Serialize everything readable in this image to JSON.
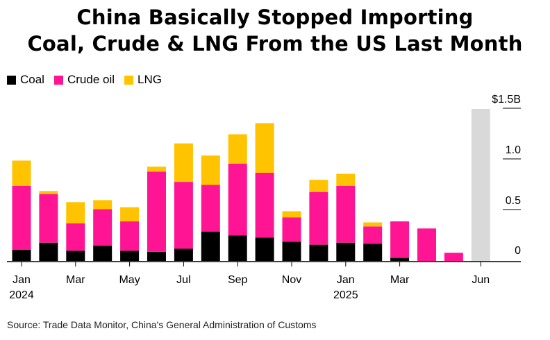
{
  "title_lines": [
    "China Basically Stopped Importing",
    "Coal, Crude & LNG From the US Last Month"
  ],
  "source": "Source: Trade Data Monitor, China's General Administration of Customs",
  "colors": {
    "coal": "#000000",
    "crude": "#ff1493",
    "lng": "#ffc300",
    "projection": "#d9d9d9"
  },
  "chart_data": {
    "type": "bar",
    "stacked": true,
    "unit": "$B",
    "categories": [
      "Jan 2024",
      "Feb 2024",
      "Mar 2024",
      "Apr 2024",
      "May 2024",
      "Jun 2024",
      "Jul 2024",
      "Aug 2024",
      "Sep 2024",
      "Oct 2024",
      "Nov 2024",
      "Dec 2024",
      "Jan 2025",
      "Feb 2025",
      "Mar 2025",
      "Apr 2025",
      "May 2025",
      "Jun 2025"
    ],
    "series": [
      {
        "name": "Coal",
        "color": "#000000",
        "values": [
          0.11,
          0.18,
          0.1,
          0.15,
          0.1,
          0.09,
          0.12,
          0.29,
          0.25,
          0.23,
          0.19,
          0.16,
          0.18,
          0.17,
          0.03,
          0.0,
          0.0,
          0.0
        ]
      },
      {
        "name": "Crude oil",
        "color": "#ff1493",
        "values": [
          0.63,
          0.48,
          0.27,
          0.36,
          0.29,
          0.79,
          0.66,
          0.46,
          0.71,
          0.64,
          0.24,
          0.52,
          0.56,
          0.17,
          0.36,
          0.32,
          0.08,
          0.0
        ]
      },
      {
        "name": "LNG",
        "color": "#ffc300",
        "values": [
          0.25,
          0.03,
          0.21,
          0.09,
          0.14,
          0.05,
          0.38,
          0.29,
          0.29,
          0.49,
          0.06,
          0.12,
          0.12,
          0.04,
          0.0,
          0.0,
          0.0,
          0.0
        ]
      }
    ],
    "highlight": {
      "category": "Jun 2025",
      "value": 1.5,
      "color": "#d9d9d9"
    },
    "x_tick_labels": [
      {
        "category": "Jan 2024",
        "lines": [
          "Jan",
          "2024"
        ]
      },
      {
        "category": "Mar 2024",
        "lines": [
          "Mar"
        ]
      },
      {
        "category": "May 2024",
        "lines": [
          "May"
        ]
      },
      {
        "category": "Jul 2024",
        "lines": [
          "Jul"
        ]
      },
      {
        "category": "Sep 2024",
        "lines": [
          "Sep"
        ]
      },
      {
        "category": "Nov 2024",
        "lines": [
          "Nov"
        ]
      },
      {
        "category": "Jan 2025",
        "lines": [
          "Jan",
          "2025"
        ]
      },
      {
        "category": "Mar 2025",
        "lines": [
          "Mar"
        ]
      },
      {
        "category": "Jun 2025",
        "lines": [
          "Jun"
        ]
      }
    ],
    "y_ticks": [
      {
        "value": 0,
        "label": "0"
      },
      {
        "value": 0.5,
        "label": "0.5"
      },
      {
        "value": 1.0,
        "label": "1.0"
      },
      {
        "value": 1.5,
        "label": "$1.5B"
      }
    ],
    "ylim": [
      0,
      1.5
    ],
    "legend_position": "top-left",
    "grid": false
  }
}
